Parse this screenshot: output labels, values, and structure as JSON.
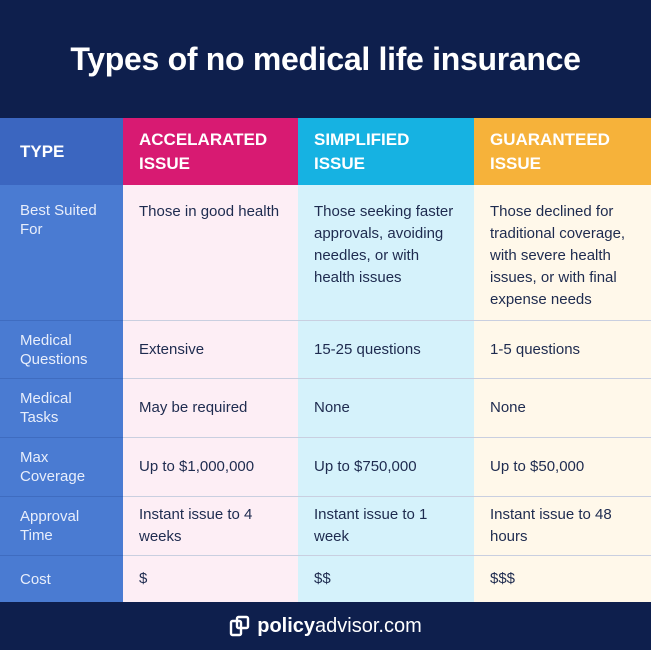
{
  "title": "Types of no medical life insurance",
  "table": {
    "headers": [
      "TYPE",
      "ACCELARATED ISSUE",
      "SIMPLIFIED ISSUE",
      "GUARANTEED ISSUE"
    ],
    "rows": [
      {
        "label": "Best Suited For",
        "values": [
          "Those in good health",
          "Those seeking faster approvals, avoiding needles, or with health issues",
          "Those declined for traditional coverage, with severe health issues, or with final expense needs"
        ]
      },
      {
        "label": "Medical Questions",
        "values": [
          "Extensive",
          "15-25 questions",
          "1-5 questions"
        ]
      },
      {
        "label": "Medical Tasks",
        "values": [
          "May be required",
          "None",
          "None"
        ]
      },
      {
        "label": "Max Coverage",
        "values": [
          "Up to $1,000,000",
          "Up to $750,000",
          "Up to $50,000"
        ]
      },
      {
        "label": "Approval Time",
        "values": [
          "Instant issue to 4 weeks",
          "Instant issue to 1 week",
          "Instant issue to 48 hours"
        ]
      },
      {
        "label": "Cost",
        "values": [
          "$",
          "$$",
          "$$$"
        ]
      }
    ]
  },
  "footer": {
    "brand_bold": "policy",
    "brand_rest": "advisor.com",
    "logo_icon": "policyadvisor-logo-icon"
  },
  "colors": {
    "background": "#0e1f4d",
    "type_column": "#4a7bd2",
    "accelerated": "#d81a72",
    "simplified": "#16b2e2",
    "guaranteed": "#f6b23a"
  }
}
